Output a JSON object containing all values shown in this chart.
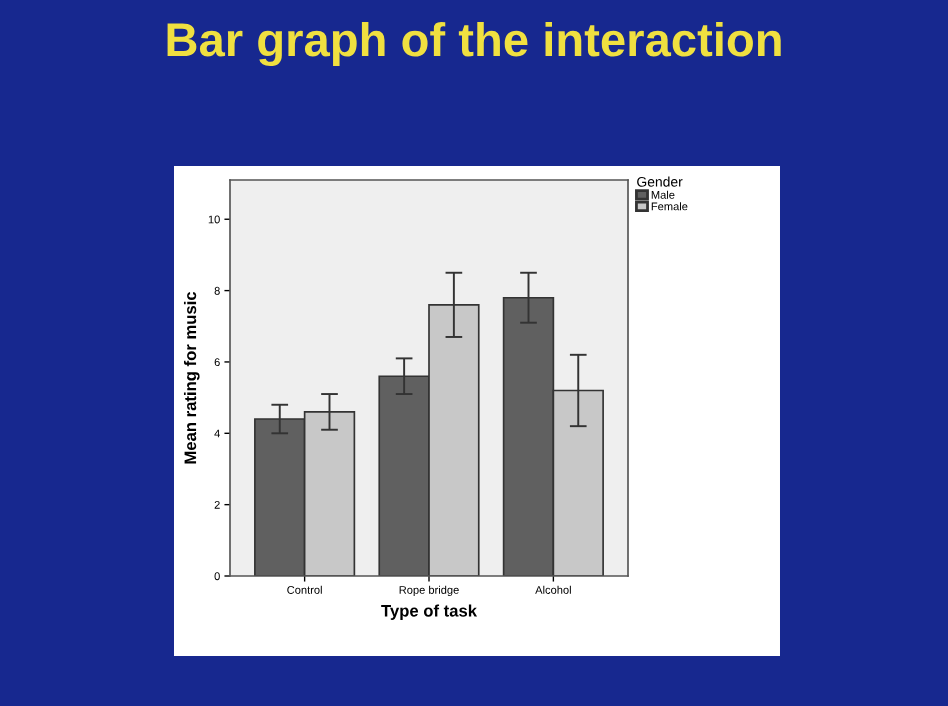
{
  "chart_data": {
    "type": "bar",
    "title": "Bar graph of the interaction",
    "xlabel": "Type of task",
    "ylabel": "Mean rating for music",
    "legend_title": "Gender",
    "categories": [
      "Control",
      "Rope bridge",
      "Alcohol"
    ],
    "series": [
      {
        "name": "Male",
        "color": "#606060",
        "values": [
          4.4,
          5.6,
          7.8
        ],
        "errors": [
          [
            4.0,
            4.8
          ],
          [
            5.1,
            6.1
          ],
          [
            7.1,
            8.5
          ]
        ]
      },
      {
        "name": "Female",
        "color": "#c8c8c8",
        "values": [
          4.6,
          7.6,
          5.2
        ],
        "errors": [
          [
            4.1,
            5.1
          ],
          [
            6.7,
            8.5
          ],
          [
            4.2,
            6.2
          ]
        ]
      }
    ],
    "ylim": [
      0,
      11.1
    ],
    "yticks": [
      0,
      2,
      4,
      6,
      8,
      10
    ],
    "grid": false,
    "legend": "top right"
  }
}
